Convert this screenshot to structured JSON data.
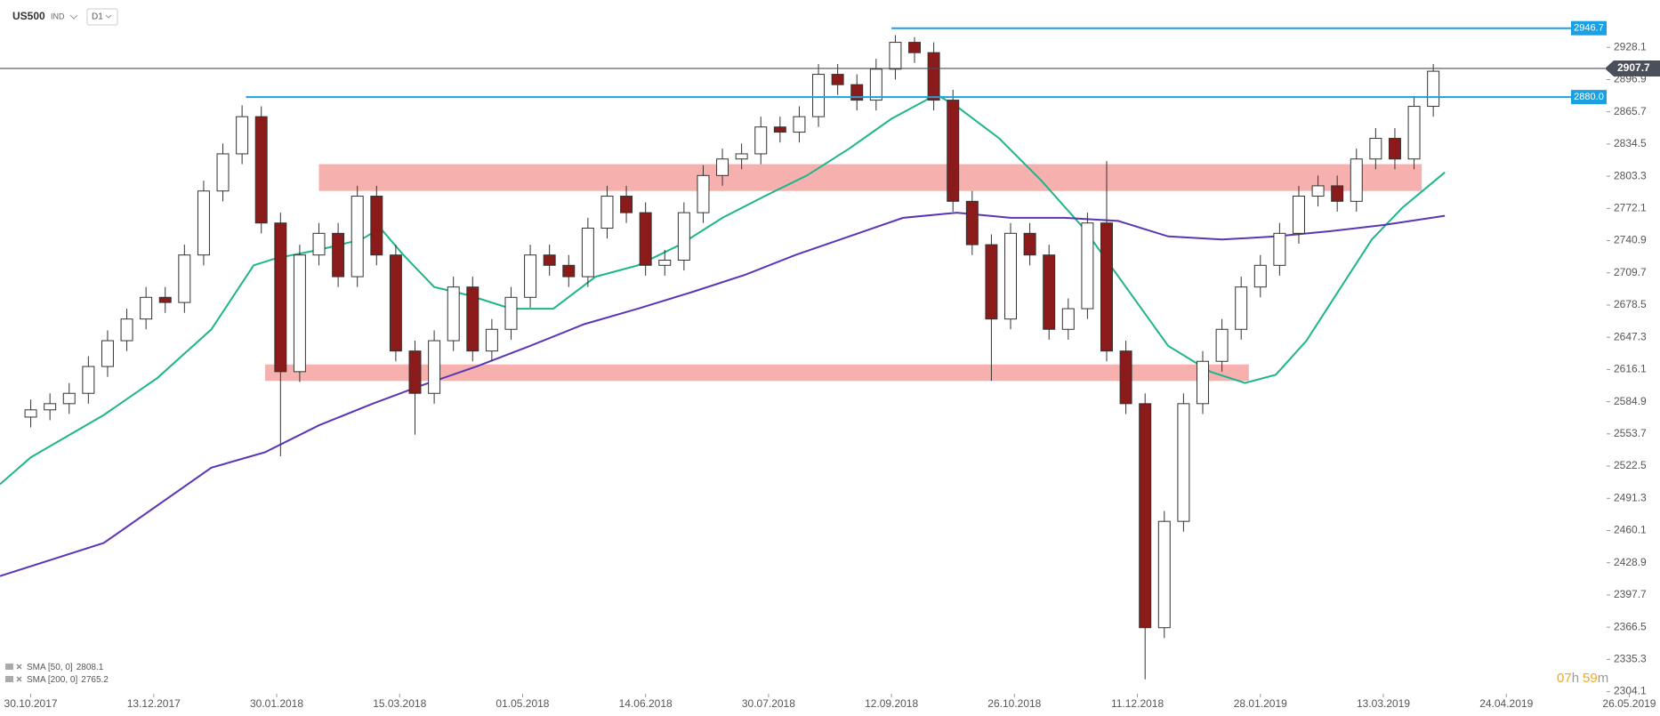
{
  "header": {
    "symbol": "US500",
    "market": "IND",
    "interval": "D1"
  },
  "chart_data": {
    "type": "candlestick",
    "xlim": [
      -8,
      424
    ],
    "ylim": [
      2302,
      2974
    ],
    "xticks": [
      {
        "value": 0,
        "label": "30.10.2017"
      },
      {
        "value": 32,
        "label": "13.12.2017"
      },
      {
        "value": 64,
        "label": "30.01.2018"
      },
      {
        "value": 96,
        "label": "15.03.2018"
      },
      {
        "value": 128,
        "label": "01.05.2018"
      },
      {
        "value": 160,
        "label": "14.06.2018"
      },
      {
        "value": 192,
        "label": "30.07.2018"
      },
      {
        "value": 224,
        "label": "12.09.2018"
      },
      {
        "value": 256,
        "label": "26.10.2018"
      },
      {
        "value": 288,
        "label": "11.12.2018"
      },
      {
        "value": 320,
        "label": "28.01.2019"
      },
      {
        "value": 352,
        "label": "13.03.2019"
      },
      {
        "value": 384,
        "label": "24.04.2019"
      },
      {
        "value": 416,
        "label": "26.05.2019"
      }
    ],
    "yticks": [
      2304.1,
      2335.3,
      2366.5,
      2397.7,
      2428.9,
      2460.1,
      2491.3,
      2522.5,
      2553.7,
      2584.9,
      2616.1,
      2647.3,
      2678.5,
      2709.7,
      2740.9,
      2772.1,
      2803.3,
      2834.5,
      2865.7,
      2896.9,
      2928.1
    ],
    "up_color": "#ffffff",
    "down_color": "#8b1a1a",
    "x": [
      0,
      5,
      10,
      15,
      20,
      25,
      30,
      35,
      40,
      45,
      50,
      55,
      60,
      65,
      70,
      75,
      80,
      85,
      90,
      95,
      100,
      105,
      110,
      115,
      120,
      125,
      130,
      135,
      140,
      145,
      150,
      155,
      160,
      165,
      170,
      175,
      180,
      185,
      190,
      195,
      200,
      205,
      210,
      215,
      220,
      225,
      230,
      235,
      240,
      245,
      250,
      255,
      260,
      265,
      270,
      275,
      280,
      285,
      290,
      295,
      300,
      305,
      310,
      315,
      320,
      325,
      330,
      335,
      340,
      345,
      350,
      355,
      360,
      365
    ],
    "open": [
      2570,
      2577,
      2583,
      2593,
      2619,
      2644,
      2665,
      2686,
      2681,
      2727,
      2789,
      2825,
      2861,
      2758,
      2614,
      2727,
      2748,
      2706,
      2784,
      2727,
      2634,
      2593,
      2644,
      2696,
      2634,
      2655,
      2686,
      2727,
      2717,
      2706,
      2753,
      2784,
      2768,
      2717,
      2722,
      2768,
      2804,
      2820,
      2825,
      2851,
      2846,
      2861,
      2902,
      2892,
      2877,
      2907,
      2933,
      2923,
      2877,
      2779,
      2737,
      2665,
      2748,
      2727,
      2655,
      2675,
      2758,
      2634,
      2583,
      2366,
      2469,
      2583,
      2624,
      2655,
      2696,
      2717,
      2748,
      2784,
      2794,
      2779,
      2820,
      2840,
      2820,
      2871
    ],
    "high": [
      2587,
      2593,
      2603,
      2629,
      2654,
      2675,
      2696,
      2696,
      2737,
      2799,
      2835,
      2872,
      2871,
      2768,
      2737,
      2758,
      2758,
      2794,
      2794,
      2737,
      2644,
      2654,
      2706,
      2706,
      2665,
      2696,
      2737,
      2737,
      2727,
      2763,
      2794,
      2794,
      2778,
      2732,
      2778,
      2814,
      2830,
      2835,
      2861,
      2861,
      2871,
      2912,
      2912,
      2902,
      2917,
      2940,
      2938,
      2933,
      2887,
      2789,
      2747,
      2758,
      2758,
      2737,
      2685,
      2768,
      2818,
      2644,
      2593,
      2479,
      2593,
      2634,
      2665,
      2706,
      2727,
      2758,
      2794,
      2804,
      2804,
      2830,
      2850,
      2850,
      2881,
      2912
    ],
    "low": [
      2560,
      2567,
      2573,
      2583,
      2609,
      2634,
      2655,
      2671,
      2671,
      2717,
      2779,
      2815,
      2748,
      2532,
      2604,
      2717,
      2696,
      2696,
      2717,
      2624,
      2553,
      2583,
      2634,
      2624,
      2624,
      2645,
      2676,
      2707,
      2696,
      2696,
      2743,
      2758,
      2707,
      2707,
      2712,
      2758,
      2794,
      2810,
      2815,
      2836,
      2836,
      2851,
      2882,
      2867,
      2867,
      2897,
      2913,
      2867,
      2769,
      2727,
      2605,
      2655,
      2717,
      2645,
      2645,
      2665,
      2624,
      2573,
      2316,
      2356,
      2459,
      2573,
      2614,
      2645,
      2686,
      2707,
      2738,
      2774,
      2769,
      2769,
      2810,
      2810,
      2810,
      2861
    ],
    "close": [
      2577,
      2583,
      2593,
      2619,
      2644,
      2665,
      2686,
      2681,
      2727,
      2789,
      2825,
      2861,
      2758,
      2614,
      2727,
      2748,
      2706,
      2784,
      2727,
      2634,
      2593,
      2644,
      2696,
      2634,
      2655,
      2686,
      2727,
      2717,
      2706,
      2753,
      2784,
      2768,
      2717,
      2722,
      2768,
      2804,
      2820,
      2825,
      2851,
      2846,
      2861,
      2902,
      2892,
      2877,
      2907,
      2933,
      2923,
      2877,
      2779,
      2737,
      2665,
      2748,
      2727,
      2655,
      2675,
      2758,
      2634,
      2583,
      2366,
      2469,
      2583,
      2624,
      2655,
      2696,
      2717,
      2748,
      2784,
      2794,
      2779,
      2820,
      2840,
      2820,
      2871,
      2905
    ],
    "overlays": [
      {
        "name": "SMA [50, 0]",
        "last_value": 2808.1,
        "color": "#1db58a",
        "x": [
          -8,
          0,
          19,
          33,
          47,
          58,
          64,
          75,
          86,
          91,
          97,
          105,
          114,
          125,
          136,
          147,
          158,
          169,
          180,
          191,
          202,
          213,
          224,
          233,
          235,
          241,
          252,
          263,
          274,
          285,
          296,
          307,
          316,
          324,
          332,
          341,
          349,
          357,
          368
        ],
        "values": [
          2505,
          2531,
          2572,
          2608,
          2655,
          2717,
          2724,
          2732,
          2742,
          2753,
          2727,
          2696,
          2688,
          2675,
          2675,
          2706,
          2717,
          2737,
          2763,
          2784,
          2804,
          2830,
          2859,
          2877,
          2884,
          2871,
          2840,
          2799,
          2753,
          2696,
          2639,
          2614,
          2603,
          2611,
          2644,
          2696,
          2742,
          2773,
          2807
        ]
      },
      {
        "name": "SMA [200, 0]",
        "last_value": 2765.2,
        "color": "#5b35b5",
        "x": [
          -8,
          19,
          47,
          61,
          75,
          89,
          102,
          116,
          130,
          144,
          158,
          172,
          186,
          199,
          213,
          227,
          241,
          255,
          269,
          283,
          296,
          310,
          324,
          338,
          352,
          368
        ],
        "values": [
          2416,
          2448,
          2521,
          2536,
          2562,
          2583,
          2601,
          2619,
          2639,
          2660,
          2675,
          2691,
          2708,
          2727,
          2745,
          2763,
          2768,
          2763,
          2763,
          2760,
          2745,
          2742,
          2745,
          2750,
          2756,
          2765
        ]
      }
    ],
    "zones": [
      {
        "low": 2789,
        "high": 2815,
        "from": 75,
        "to": 362,
        "color": "#f4a3a0"
      },
      {
        "low": 2605,
        "high": 2621,
        "from": 61,
        "to": 317,
        "color": "#f4a3a0"
      }
    ],
    "levels": [
      {
        "price": 2946.7,
        "from": 224,
        "color": "#1ba1e2"
      },
      {
        "price": {
          "value": 2880,
          "label": "2880.0"
        },
        "from": 56,
        "color": "#1ba1e2"
      }
    ],
    "last_price": 2907.7,
    "last_price_color": "#4a4f5a",
    "timer": [
      "07",
      "h",
      "59",
      "m"
    ]
  }
}
